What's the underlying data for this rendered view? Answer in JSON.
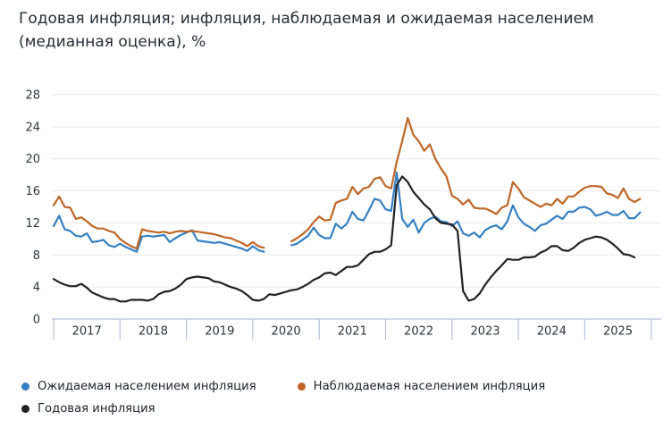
{
  "chart_data": {
    "type": "line",
    "title": "Годовая инфляция; инфляция, наблюдаемая и ожидаемая населением (медианная оценка), %",
    "x_frequency": "monthly",
    "x_start": "2017-01",
    "x_end": "2025-11",
    "years": [
      "2017",
      "2018",
      "2019",
      "2020",
      "2021",
      "2022",
      "2023",
      "2024",
      "2025"
    ],
    "yticks": [
      0,
      4,
      8,
      12,
      16,
      20,
      24,
      28
    ],
    "ylim": [
      0,
      28
    ],
    "grid": "horizontal",
    "legend_position": "bottom-left",
    "gap_months": [
      "2020-04",
      "2020-05",
      "2020-06",
      "2020-07"
    ],
    "colors": {
      "grid": "#e9e9e9",
      "axis_band": "#b6c0d9",
      "tick_label": "#32373d"
    },
    "series": [
      {
        "id": "expected-inflation",
        "name": "Ожидаемая населением инфляция",
        "color": "#3580c2",
        "values": [
          11.6,
          12.9,
          11.2,
          11.0,
          10.4,
          10.3,
          10.7,
          9.6,
          9.7,
          9.9,
          9.2,
          9.0,
          9.4,
          9.0,
          8.7,
          8.4,
          10.3,
          10.4,
          10.3,
          10.4,
          10.5,
          9.6,
          10.1,
          10.5,
          10.8,
          11.1,
          9.8,
          9.7,
          9.6,
          9.5,
          9.6,
          9.4,
          9.2,
          9.0,
          8.8,
          8.5,
          9.1,
          8.6,
          8.4,
          null,
          null,
          null,
          null,
          9.2,
          9.4,
          9.9,
          10.4,
          11.4,
          10.5,
          10.1,
          10.1,
          11.9,
          11.3,
          11.9,
          13.4,
          12.5,
          12.3,
          13.6,
          15.0,
          14.8,
          13.7,
          13.5,
          18.3,
          12.5,
          11.5,
          12.4,
          10.8,
          12.0,
          12.5,
          12.8,
          12.2,
          12.1,
          11.6,
          12.2,
          10.7,
          10.4,
          10.8,
          10.2,
          11.1,
          11.5,
          11.7,
          11.2,
          12.2,
          14.2,
          12.7,
          11.9,
          11.5,
          11.0,
          11.7,
          11.9,
          12.4,
          12.9,
          12.5,
          13.4,
          13.4,
          13.9,
          14.0,
          13.7,
          12.9,
          13.1,
          13.4,
          13.0,
          13.0,
          13.5,
          12.6,
          12.6,
          13.3
        ]
      },
      {
        "id": "observed-inflation",
        "name": "Наблюдаемая населением инфляция",
        "color": "#bf6627",
        "values": [
          14.2,
          15.3,
          14.0,
          13.9,
          12.5,
          12.7,
          12.2,
          11.6,
          11.3,
          11.3,
          11.0,
          10.8,
          10.0,
          9.5,
          9.1,
          8.8,
          11.2,
          11.0,
          10.9,
          10.8,
          10.9,
          10.7,
          10.9,
          11.0,
          10.9,
          11.0,
          10.9,
          10.8,
          10.7,
          10.6,
          10.4,
          10.2,
          10.1,
          9.8,
          9.5,
          9.1,
          9.6,
          9.1,
          8.9,
          null,
          null,
          null,
          null,
          9.7,
          10.1,
          10.6,
          11.2,
          12.1,
          12.8,
          12.3,
          12.4,
          14.5,
          14.8,
          15.0,
          16.5,
          15.6,
          16.3,
          16.5,
          17.5,
          17.7,
          16.6,
          16.3,
          19.6,
          22.2,
          25.1,
          23.0,
          22.2,
          21.0,
          21.8,
          20.0,
          18.8,
          17.8,
          15.4,
          15.0,
          14.3,
          14.9,
          13.9,
          13.8,
          13.8,
          13.5,
          13.1,
          13.9,
          14.2,
          17.1,
          16.3,
          15.2,
          14.8,
          14.4,
          14.0,
          14.4,
          14.2,
          15.0,
          14.4,
          15.3,
          15.3,
          15.9,
          16.4,
          16.6,
          16.6,
          16.5,
          15.7,
          15.5,
          15.1,
          16.3,
          15.0,
          14.6,
          15.0
        ]
      },
      {
        "id": "annual-inflation",
        "name": "Годовая инфляция",
        "color": "#222222",
        "values": [
          5.0,
          4.6,
          4.3,
          4.1,
          4.1,
          4.4,
          3.9,
          3.3,
          3.0,
          2.7,
          2.5,
          2.5,
          2.2,
          2.2,
          2.4,
          2.4,
          2.4,
          2.3,
          2.5,
          3.1,
          3.4,
          3.5,
          3.8,
          4.3,
          5.0,
          5.2,
          5.3,
          5.2,
          5.1,
          4.7,
          4.6,
          4.3,
          4.0,
          3.8,
          3.5,
          3.0,
          2.4,
          2.3,
          2.5,
          3.1,
          3.0,
          3.2,
          3.4,
          3.6,
          3.7,
          4.0,
          4.4,
          4.9,
          5.2,
          5.7,
          5.8,
          5.5,
          6.0,
          6.5,
          6.5,
          6.7,
          7.4,
          8.1,
          8.4,
          8.4,
          8.7,
          9.2,
          16.7,
          17.8,
          17.1,
          15.9,
          15.1,
          14.3,
          13.7,
          12.6,
          12.0,
          11.9,
          11.8,
          11.0,
          3.5,
          2.3,
          2.5,
          3.2,
          4.3,
          5.2,
          6.0,
          6.7,
          7.5,
          7.4,
          7.4,
          7.7,
          7.7,
          7.8,
          8.3,
          8.6,
          9.1,
          9.1,
          8.6,
          8.5,
          8.9,
          9.5,
          9.9,
          10.1,
          10.3,
          10.2,
          9.9,
          9.4,
          8.8,
          8.1,
          8.0,
          7.7
        ]
      }
    ]
  }
}
